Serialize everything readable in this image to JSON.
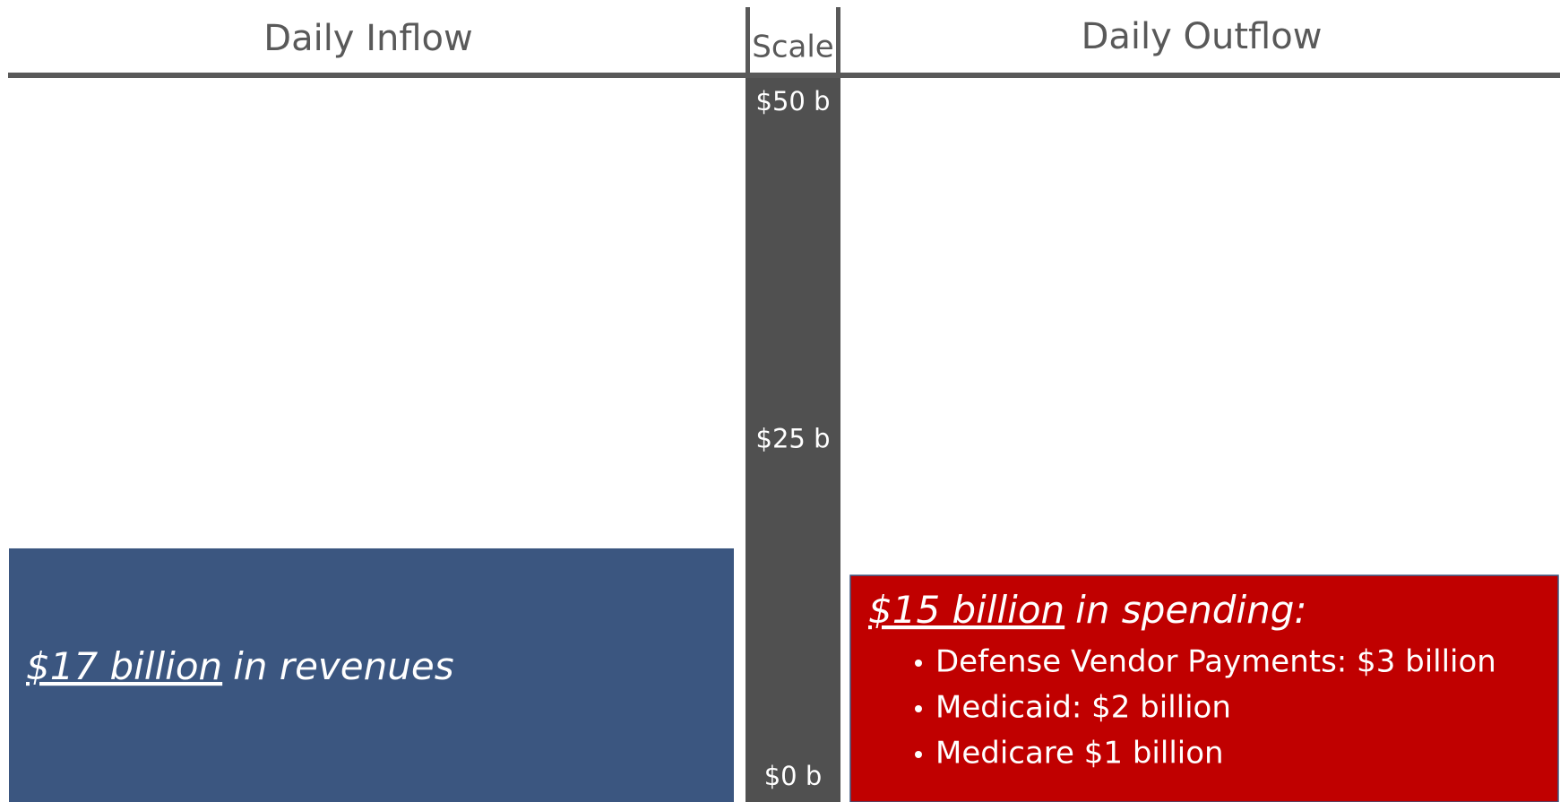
{
  "chart_data": {
    "type": "bar",
    "headers": {
      "inflow": "Daily Inflow",
      "scale": "Scale",
      "outflow": "Daily Outflow"
    },
    "ylim": [
      0,
      50
    ],
    "yticks": [
      {
        "value": 0,
        "label": "$0 b"
      },
      {
        "value": 25,
        "label": "$25 b"
      },
      {
        "value": 50,
        "label": "$50 b"
      }
    ],
    "inflow": {
      "value": 17,
      "value_label": "$17 billion",
      "text": "in revenues",
      "color": "#3b5680"
    },
    "outflow": {
      "value": 15,
      "value_label": "$15 billion",
      "text": "in spending:",
      "color": "#c00000",
      "items": [
        "Defense Vendor Payments: $3 billion",
        "Medicaid: $2 billion",
        "Medicare $1 billion"
      ]
    }
  }
}
